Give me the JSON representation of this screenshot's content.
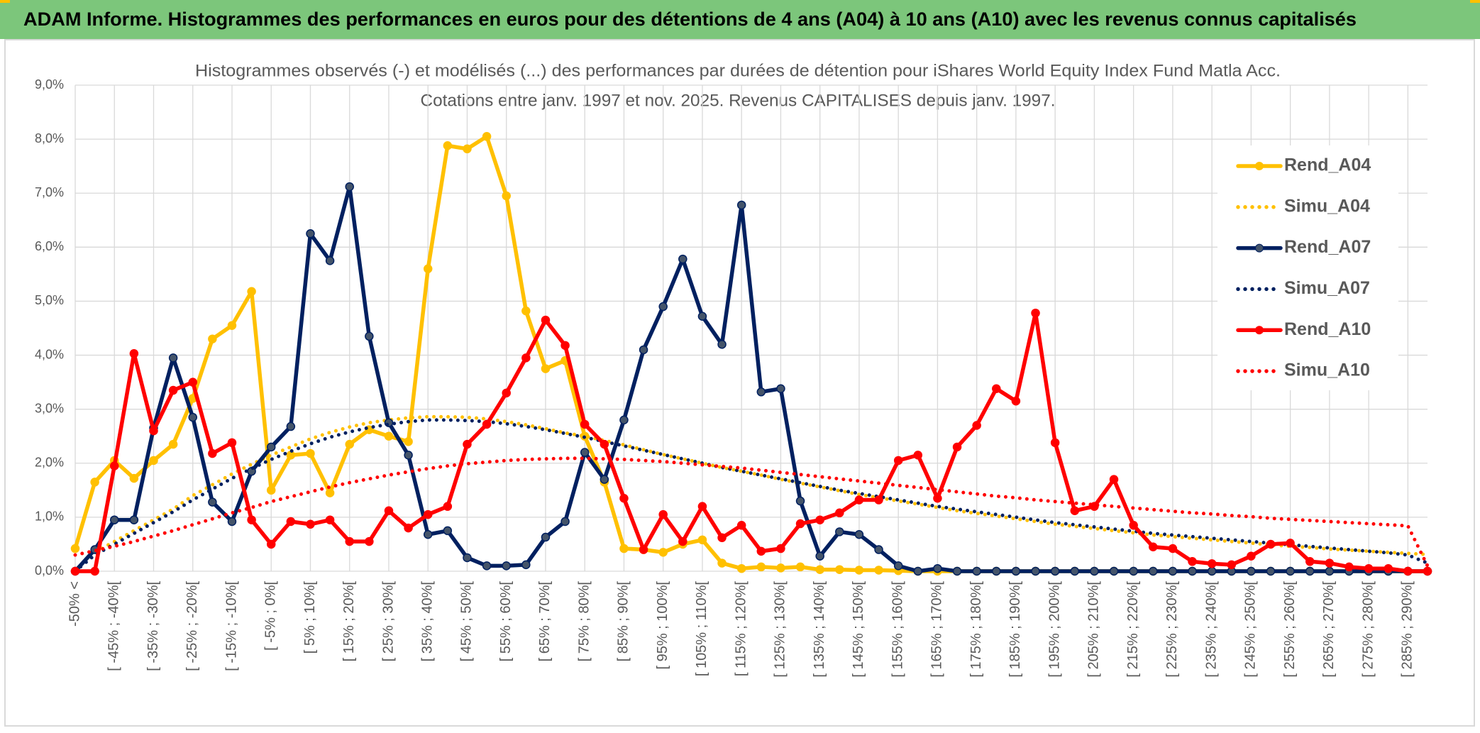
{
  "chart_data": {
    "type": "line",
    "title": "ADAM Informe. Histogrammes des performances en euros pour des détentions de 4 ans (A04) à 10 ans (A10) avec les revenus connus capitalisés",
    "subtitle": [
      "Histogrammes observés (-) et modélisés (...) des performances par durées de détention pour iShares World Equity Index Fund Matla Acc.",
      "Cotations entre janv. 1997 et nov. 2025. Revenus CAPITALISES depuis janv. 1997."
    ],
    "categories": [
      "-50% <",
      null,
      "[ -45% ; -40%[",
      null,
      "[ -35% ; -30%[",
      null,
      "[ -25% ; -20%[",
      null,
      "[ -15% ; -10%[",
      null,
      "[ -5% ; 0%[",
      null,
      "[ 5% ; 10%[",
      null,
      "[ 15% ; 20%[",
      null,
      "[ 25% ; 30%[",
      null,
      "[ 35% ; 40%[",
      null,
      "[ 45% ; 50%[",
      null,
      "[ 55% ; 60%[",
      null,
      "[ 65% ; 70%[",
      null,
      "[ 75% ; 80%[",
      null,
      "[ 85% ; 90%[",
      null,
      "[ 95% ; 100%[",
      null,
      "[ 105% ; 110%[",
      null,
      "[ 115% ; 120%[",
      null,
      "[ 125% ; 130%[",
      null,
      "[ 135% ; 140%[",
      null,
      "[ 145% ; 150%[",
      null,
      "[ 155% ; 160%[",
      null,
      "[ 165% ; 170%[",
      null,
      "[ 175% ; 180%[",
      null,
      "[ 185% ; 190%[",
      null,
      "[ 195% ; 200%[",
      null,
      "[ 205% ; 210%[",
      null,
      "[ 215% ; 220%[",
      null,
      "[ 225% ; 230%[",
      null,
      "[ 235% ; 240%[",
      null,
      "[ 245% ; 250%[",
      null,
      "[ 255% ; 260%[",
      null,
      "[ 265% ; 270%[",
      null,
      "[ 275% ; 280%[",
      null,
      "[ 285% ; 290%[",
      null
    ],
    "ylim": [
      0,
      9
    ],
    "yticks": [
      {
        "value": 0,
        "label": "0,0%"
      },
      {
        "value": 1,
        "label": "1,0%"
      },
      {
        "value": 2,
        "label": "2,0%"
      },
      {
        "value": 3,
        "label": "3,0%"
      },
      {
        "value": 4,
        "label": "4,0%"
      },
      {
        "value": 5,
        "label": "5,0%"
      },
      {
        "value": 6,
        "label": "6,0%"
      },
      {
        "value": 7,
        "label": "7,0%"
      },
      {
        "value": 8,
        "label": "8,0%"
      },
      {
        "value": 9,
        "label": "9,0%"
      }
    ],
    "grid": true,
    "legend": "right",
    "series": [
      {
        "name": "Rend_A04",
        "color": "#ffc000",
        "line": "solid",
        "markers": true,
        "values": [
          0.42,
          1.65,
          2.05,
          1.72,
          2.05,
          2.35,
          3.2,
          4.3,
          4.55,
          5.18,
          1.5,
          2.15,
          2.18,
          1.45,
          2.35,
          2.62,
          2.5,
          2.4,
          5.6,
          7.88,
          7.82,
          8.05,
          6.95,
          4.82,
          3.75,
          3.9,
          2.5,
          1.65,
          0.42,
          0.4,
          0.35,
          0.5,
          0.58,
          0.15,
          0.05,
          0.08,
          0.06,
          0.08,
          0.03,
          0.03,
          0.02,
          0.02,
          0.01,
          0,
          0,
          0,
          0,
          0,
          0,
          0,
          0,
          0,
          0,
          0,
          0,
          0,
          0,
          0,
          0,
          0,
          0,
          0,
          0,
          0,
          0,
          0,
          0,
          0,
          0,
          0
        ]
      },
      {
        "name": "Simu_A04",
        "color": "#ffc000",
        "line": "dotted",
        "markers": false,
        "values": [
          0,
          0.35,
          0.55,
          0.75,
          0.95,
          1.15,
          1.4,
          1.6,
          1.8,
          1.98,
          2.15,
          2.3,
          2.45,
          2.57,
          2.67,
          2.75,
          2.8,
          2.84,
          2.86,
          2.86,
          2.85,
          2.82,
          2.77,
          2.71,
          2.64,
          2.56,
          2.5,
          2.42,
          2.34,
          2.25,
          2.16,
          2.08,
          2.0,
          1.92,
          1.85,
          1.78,
          1.7,
          1.63,
          1.56,
          1.49,
          1.42,
          1.36,
          1.3,
          1.24,
          1.18,
          1.12,
          1.07,
          1.02,
          0.97,
          0.92,
          0.87,
          0.83,
          0.79,
          0.75,
          0.71,
          0.67,
          0.64,
          0.61,
          0.58,
          0.55,
          0.52,
          0.49,
          0.46,
          0.44,
          0.41,
          0.39,
          0.37,
          0.35,
          0.33,
          0.31
        ]
      },
      {
        "name": "Rend_A07",
        "color": "#002060",
        "line": "solid",
        "markers": true,
        "values": [
          0,
          0.4,
          0.95,
          0.95,
          2.65,
          3.95,
          2.85,
          1.28,
          0.92,
          1.85,
          2.3,
          2.68,
          6.25,
          5.75,
          7.12,
          4.35,
          2.75,
          2.15,
          0.68,
          0.75,
          0.25,
          0.1,
          0.1,
          0.12,
          0.63,
          0.92,
          2.2,
          1.7,
          2.8,
          4.1,
          4.9,
          5.78,
          4.72,
          4.2,
          6.78,
          3.32,
          3.38,
          1.3,
          0.28,
          0.73,
          0.68,
          0.4,
          0.1,
          0,
          0.05,
          0,
          0,
          0,
          0,
          0,
          0,
          0,
          0,
          0,
          0,
          0,
          0,
          0,
          0,
          0,
          0,
          0,
          0,
          0,
          0,
          0,
          0,
          0,
          0,
          0
        ]
      },
      {
        "name": "Simu_A07",
        "color": "#002060",
        "line": "dotted",
        "markers": false,
        "values": [
          0,
          0.3,
          0.5,
          0.7,
          0.9,
          1.1,
          1.32,
          1.52,
          1.72,
          1.9,
          2.07,
          2.22,
          2.36,
          2.48,
          2.58,
          2.66,
          2.72,
          2.77,
          2.8,
          2.8,
          2.79,
          2.77,
          2.73,
          2.68,
          2.62,
          2.55,
          2.48,
          2.4,
          2.32,
          2.24,
          2.16,
          2.08,
          2.0,
          1.92,
          1.85,
          1.78,
          1.71,
          1.64,
          1.57,
          1.5,
          1.44,
          1.38,
          1.32,
          1.26,
          1.2,
          1.15,
          1.1,
          1.05,
          1.0,
          0.95,
          0.9,
          0.86,
          0.82,
          0.78,
          0.74,
          0.7,
          0.67,
          0.64,
          0.61,
          0.58,
          0.55,
          0.52,
          0.49,
          0.46,
          0.43,
          0.4,
          0.37,
          0.34,
          0.3,
          0.15
        ]
      },
      {
        "name": "Rend_A10",
        "color": "#ff0000",
        "line": "solid",
        "markers": true,
        "values": [
          0,
          0,
          1.95,
          4.03,
          2.6,
          3.35,
          3.5,
          2.18,
          2.38,
          0.95,
          0.5,
          0.92,
          0.87,
          0.95,
          0.55,
          0.55,
          1.12,
          0.8,
          1.05,
          1.2,
          2.35,
          2.72,
          3.3,
          3.95,
          4.65,
          4.18,
          2.72,
          2.35,
          1.35,
          0.4,
          1.05,
          0.55,
          1.2,
          0.62,
          0.85,
          0.37,
          0.42,
          0.88,
          0.95,
          1.08,
          1.32,
          1.32,
          2.05,
          2.15,
          1.35,
          2.3,
          2.7,
          3.38,
          3.15,
          4.78,
          2.38,
          1.12,
          1.2,
          1.7,
          0.85,
          0.45,
          0.42,
          0.18,
          0.14,
          0.12,
          0.28,
          0.5,
          0.52,
          0.18,
          0.15,
          0.08,
          0.05,
          0.05,
          0,
          0
        ]
      },
      {
        "name": "Simu_A10",
        "color": "#ff0000",
        "line": "dotted",
        "markers": false,
        "values": [
          0.3,
          0.38,
          0.46,
          0.55,
          0.65,
          0.75,
          0.86,
          0.97,
          1.08,
          1.18,
          1.29,
          1.38,
          1.47,
          1.56,
          1.64,
          1.71,
          1.78,
          1.84,
          1.9,
          1.95,
          1.99,
          2.02,
          2.05,
          2.07,
          2.08,
          2.09,
          2.09,
          2.08,
          2.07,
          2.05,
          2.03,
          2.0,
          1.97,
          1.94,
          1.91,
          1.87,
          1.83,
          1.79,
          1.75,
          1.71,
          1.67,
          1.63,
          1.59,
          1.55,
          1.51,
          1.47,
          1.43,
          1.39,
          1.36,
          1.32,
          1.29,
          1.26,
          1.23,
          1.2,
          1.17,
          1.14,
          1.11,
          1.08,
          1.06,
          1.03,
          1.01,
          0.98,
          0.96,
          0.94,
          0.92,
          0.9,
          0.88,
          0.86,
          0.84,
          0.1
        ]
      }
    ]
  }
}
